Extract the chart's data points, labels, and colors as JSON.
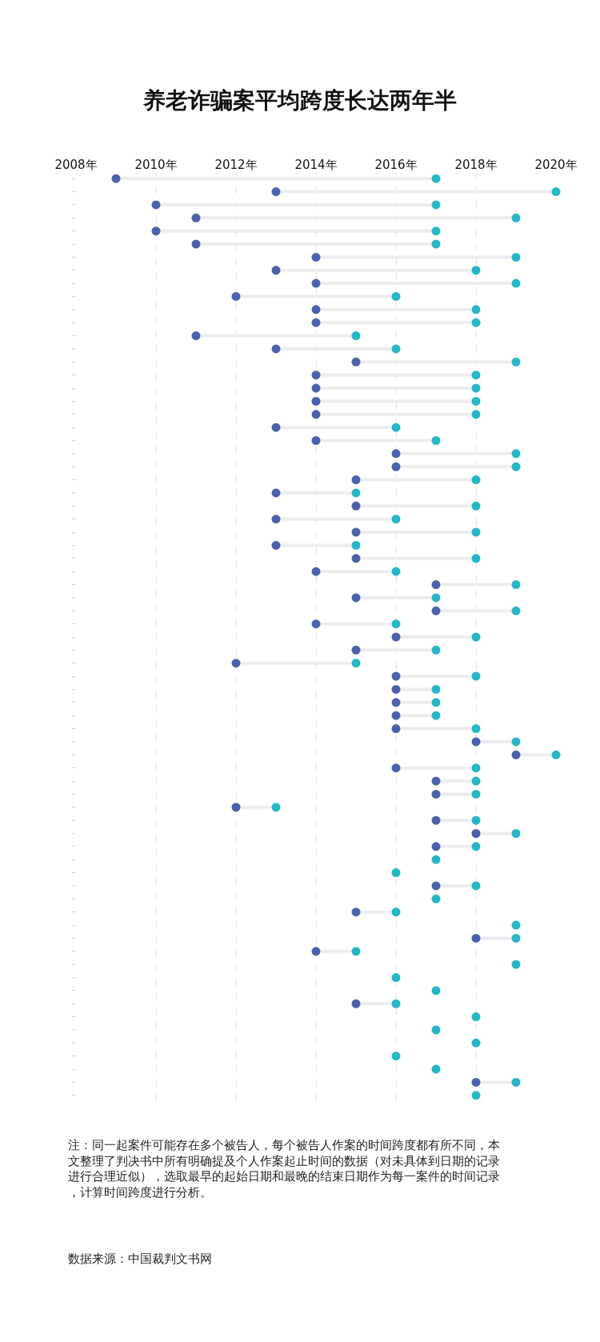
{
  "chart_data": {
    "type": "scatter",
    "title": "养老诈骗案平均跨度长达两年半",
    "categories": [
      null,
      null,
      null,
      null,
      null,
      null,
      null,
      null,
      null,
      null,
      null,
      null,
      null,
      null,
      null,
      null,
      null,
      null,
      null,
      null,
      null,
      null,
      null,
      null,
      null,
      null,
      null,
      null,
      null,
      null,
      null,
      null,
      null,
      null,
      null,
      null,
      null,
      null,
      null,
      null,
      null,
      null,
      null,
      null,
      null,
      null,
      null,
      null,
      null,
      null,
      null,
      null,
      null,
      null,
      null,
      null,
      null,
      null,
      null,
      null,
      null,
      null,
      null,
      null,
      null,
      null,
      null,
      null,
      null,
      null,
      null
    ],
    "orientation": "horizontal",
    "series": [
      {
        "color": "#4a62ad",
        "values": [
          2009,
          2013,
          2010,
          2011,
          2010,
          2011,
          2014,
          2013,
          2014,
          2012,
          2014,
          2014,
          2011,
          2013,
          2015,
          2014,
          2014,
          2014,
          2014,
          2013,
          2014,
          2016,
          2016,
          2015,
          2013,
          2015,
          2013,
          2015,
          2013,
          2015,
          2014,
          2017,
          2015,
          2017,
          2014,
          2016,
          2015,
          2012,
          2016,
          2016,
          2016,
          2016,
          2016,
          2018,
          2019,
          2016,
          2017,
          2017,
          2012,
          2017,
          2018,
          2017,
          null,
          null,
          2017,
          null,
          2015,
          null,
          2018,
          2014,
          null,
          null,
          null,
          2015,
          null,
          null,
          null,
          null,
          null,
          2018,
          null
        ]
      },
      {
        "color": "#22b9c4",
        "values": [
          2017,
          2020,
          2017,
          2019,
          2017,
          2017,
          2019,
          2018,
          2019,
          2016,
          2018,
          2018,
          2015,
          2016,
          2019,
          2018,
          2018,
          2018,
          2018,
          2016,
          2017,
          2019,
          2019,
          2018,
          2015,
          2018,
          2016,
          2018,
          2015,
          2018,
          2016,
          2019,
          2017,
          2019,
          2016,
          2018,
          2017,
          2015,
          2018,
          2017,
          2017,
          2017,
          2018,
          2019,
          2020,
          2018,
          2018,
          2018,
          2013,
          2018,
          2019,
          2018,
          2017,
          2016,
          2018,
          2017,
          2016,
          2019,
          2019,
          2015,
          2019,
          2016,
          2017,
          2016,
          2018,
          2017,
          2018,
          2016,
          2017,
          2019,
          2018
        ]
      }
    ],
    "xlim": [
      2008,
      2020
    ],
    "xticks": [
      {
        "value": 2008,
        "label": "2008年"
      },
      {
        "value": 2010,
        "label": "2010年"
      },
      {
        "value": 2012,
        "label": "2012年"
      },
      {
        "value": 2014,
        "label": "2014年"
      },
      {
        "value": 2016,
        "label": "2016年"
      },
      {
        "value": 2018,
        "label": "2018年"
      },
      {
        "value": 2020,
        "label": "2020年"
      }
    ],
    "grid": "x",
    "marker": "circle",
    "tick_labels": "x",
    "annotations": [
      "注：同一起案件可能存在多个被告人，每个被告人作案的时间跨度都有所不同，本文整理了判决书中所有明确提及个人作案起止时间的数据（对未具体到日期的记录进行合理近似），选取最早的起始日期和最晚的结束日期作为每一案件的时间记录，计算时间跨度进行分析。",
      "数据来源：中国裁判文书网"
    ]
  }
}
